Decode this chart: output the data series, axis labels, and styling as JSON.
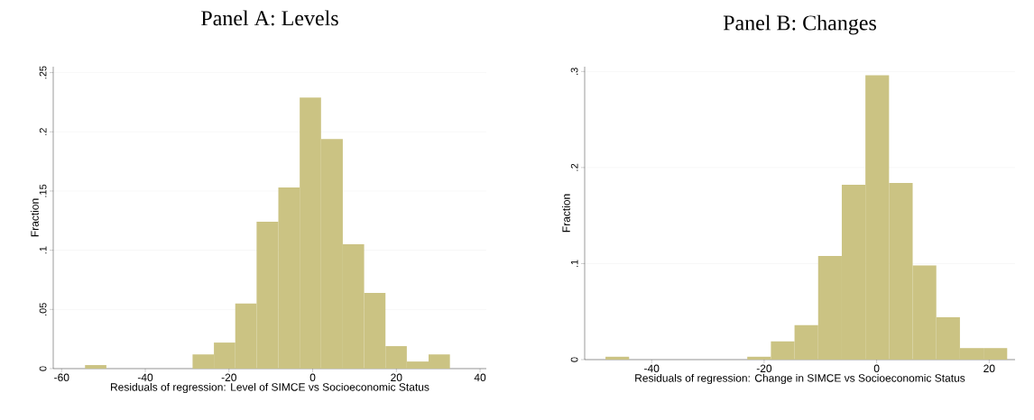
{
  "chart_data": [
    {
      "type": "histogram",
      "title": "Panel A: Levels",
      "xlabel": "Residuals of regression: Level of SIMCE vs Socioeconomic Status",
      "ylabel": "Fraction",
      "bins": [
        -54.4,
        -49.3,
        -44.1,
        -39.0,
        -33.9,
        -28.7,
        -23.6,
        -18.5,
        -13.4,
        -8.2,
        -3.1,
        2.0,
        7.2,
        12.3,
        17.4,
        22.5,
        27.7,
        32.8
      ],
      "values": [
        0.003,
        0,
        0,
        0,
        0,
        0.012,
        0.022,
        0.055,
        0.124,
        0.153,
        0.229,
        0.194,
        0.105,
        0.064,
        0.019,
        0.006,
        0.012
      ],
      "color": "#cbc383",
      "xlim": [
        -62,
        41.5
      ],
      "ylim": [
        0,
        0.255
      ],
      "xticks": [
        -60,
        -40,
        -20,
        0,
        20,
        40
      ],
      "yticks": [
        0,
        {
          "value": 0.05,
          "label": ".05"
        },
        {
          "value": 0.1,
          "label": ".1"
        },
        {
          "value": 0.15,
          "label": ".15"
        },
        {
          "value": 0.2,
          "label": ".2"
        },
        {
          "value": 0.25,
          "label": ".25"
        }
      ],
      "grid": "y"
    },
    {
      "type": "histogram",
      "title": "Panel B: Changes",
      "xlabel": "Residuals of regression: Change in SIMCE vs Socioeconomic Status",
      "ylabel": "Fraction",
      "bins": [
        -48.2,
        -44.0,
        -39.8,
        -35.6,
        -31.4,
        -27.2,
        -23.0,
        -18.8,
        -14.6,
        -10.4,
        -6.2,
        -2.0,
        2.2,
        6.4,
        10.6,
        14.8,
        19.0,
        23.2
      ],
      "values": [
        0.003,
        0,
        0,
        0,
        0,
        0,
        0.003,
        0.019,
        0.036,
        0.108,
        0.182,
        0.296,
        0.184,
        0.098,
        0.044,
        0.012,
        0.012
      ],
      "color": "#cbc383",
      "xlim": [
        -51.9,
        24.6
      ],
      "ylim": [
        0,
        0.305
      ],
      "xticks": [
        -40,
        -20,
        0,
        20
      ],
      "yticks": [
        0,
        {
          "value": 0.1,
          "label": ".1"
        },
        {
          "value": 0.2,
          "label": ".2"
        },
        {
          "value": 0.3,
          "label": ".3"
        }
      ],
      "grid": "y"
    }
  ]
}
